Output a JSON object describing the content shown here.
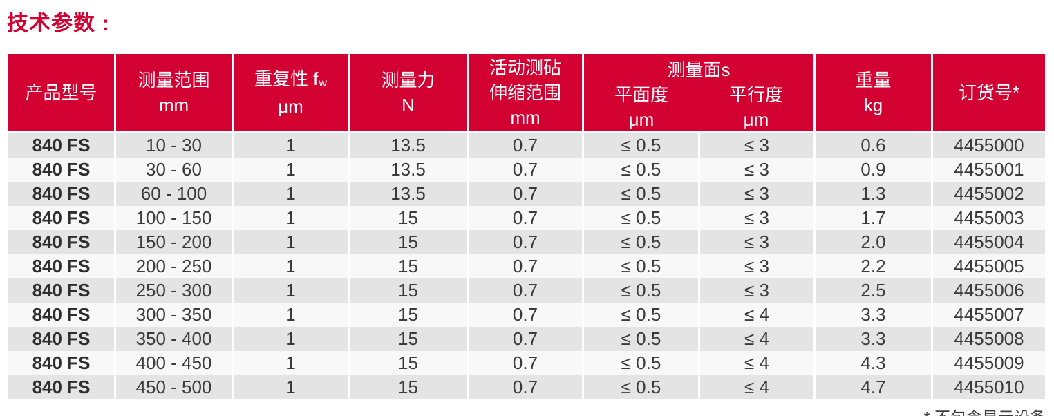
{
  "title": "技术参数 :",
  "footnote": "* 不包含显示设备",
  "colors": {
    "header_red": "#D30032",
    "row_gray": "#E4E4E4",
    "row_light": "#F8F8F8",
    "text": "#3A3A3A"
  },
  "table": {
    "header": {
      "product_model": "产品型号",
      "range": {
        "label": "测量范围",
        "unit": "mm"
      },
      "repeatability": {
        "prefix": "重复性 f",
        "sub": "w",
        "unit": "μm"
      },
      "force": {
        "label": "测量力",
        "unit": "N"
      },
      "anvil": {
        "line1": "活动测砧",
        "line2": "伸缩范围",
        "unit": "mm"
      },
      "faces_group": {
        "title": "测量面s",
        "flatness": {
          "label": "平面度",
          "unit": "μm"
        },
        "parallelism": {
          "label": "平行度",
          "unit": "μm"
        }
      },
      "weight": {
        "label": "重量",
        "unit": "kg"
      },
      "order": "订货号*"
    },
    "rows": [
      {
        "model": "840 FS",
        "range": "10 - 30",
        "repeatability": "1",
        "force": "13.5",
        "travel": "0.7",
        "flatness": "≤ 0.5",
        "parallelism": "≤ 3",
        "weight": "0.6",
        "order": "4455000"
      },
      {
        "model": "840 FS",
        "range": "30 - 60",
        "repeatability": "1",
        "force": "13.5",
        "travel": "0.7",
        "flatness": "≤ 0.5",
        "parallelism": "≤ 3",
        "weight": "0.9",
        "order": "4455001"
      },
      {
        "model": "840 FS",
        "range": "60 - 100",
        "repeatability": "1",
        "force": "13.5",
        "travel": "0.7",
        "flatness": "≤ 0.5",
        "parallelism": "≤ 3",
        "weight": "1.3",
        "order": "4455002"
      },
      {
        "model": "840 FS",
        "range": "100 - 150",
        "repeatability": "1",
        "force": "15",
        "travel": "0.7",
        "flatness": "≤ 0.5",
        "parallelism": "≤ 3",
        "weight": "1.7",
        "order": "4455003"
      },
      {
        "model": "840 FS",
        "range": "150 - 200",
        "repeatability": "1",
        "force": "15",
        "travel": "0.7",
        "flatness": "≤ 0.5",
        "parallelism": "≤ 3",
        "weight": "2.0",
        "order": "4455004"
      },
      {
        "model": "840 FS",
        "range": "200 - 250",
        "repeatability": "1",
        "force": "15",
        "travel": "0.7",
        "flatness": "≤ 0.5",
        "parallelism": "≤ 3",
        "weight": "2.2",
        "order": "4455005"
      },
      {
        "model": "840 FS",
        "range": "250 - 300",
        "repeatability": "1",
        "force": "15",
        "travel": "0.7",
        "flatness": "≤ 0.5",
        "parallelism": "≤ 3",
        "weight": "2.5",
        "order": "4455006"
      },
      {
        "model": "840 FS",
        "range": "300 - 350",
        "repeatability": "1",
        "force": "15",
        "travel": "0.7",
        "flatness": "≤ 0.5",
        "parallelism": "≤ 4",
        "weight": "3.3",
        "order": "4455007"
      },
      {
        "model": "840 FS",
        "range": "350 - 400",
        "repeatability": "1",
        "force": "15",
        "travel": "0.7",
        "flatness": "≤ 0.5",
        "parallelism": "≤ 4",
        "weight": "3.3",
        "order": "4455008"
      },
      {
        "model": "840 FS",
        "range": "400 - 450",
        "repeatability": "1",
        "force": "15",
        "travel": "0.7",
        "flatness": "≤ 0.5",
        "parallelism": "≤ 4",
        "weight": "4.3",
        "order": "4455009"
      },
      {
        "model": "840 FS",
        "range": "450 - 500",
        "repeatability": "1",
        "force": "15",
        "travel": "0.7",
        "flatness": "≤ 0.5",
        "parallelism": "≤ 4",
        "weight": "4.7",
        "order": "4455010"
      }
    ]
  }
}
